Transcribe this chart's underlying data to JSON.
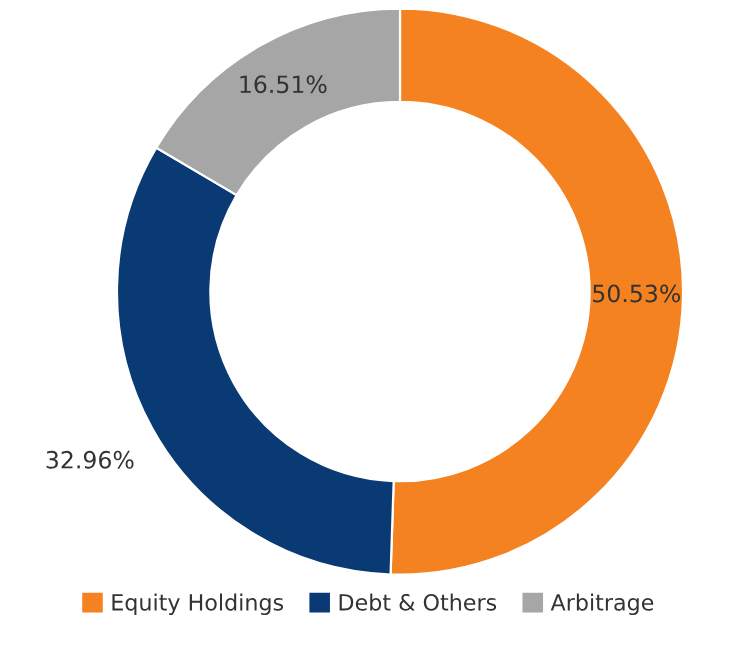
{
  "chart_data": {
    "type": "donut",
    "categories": [
      "Equity Holdings",
      "Debt & Others",
      "Arbitrage"
    ],
    "values": [
      50.53,
      32.96,
      16.51
    ],
    "colors": [
      "#f58220",
      "#0a3a73",
      "#a6a6a6"
    ],
    "value_labels": [
      "50.53%",
      "32.96%",
      "16.51%"
    ],
    "legend": "bottom"
  }
}
